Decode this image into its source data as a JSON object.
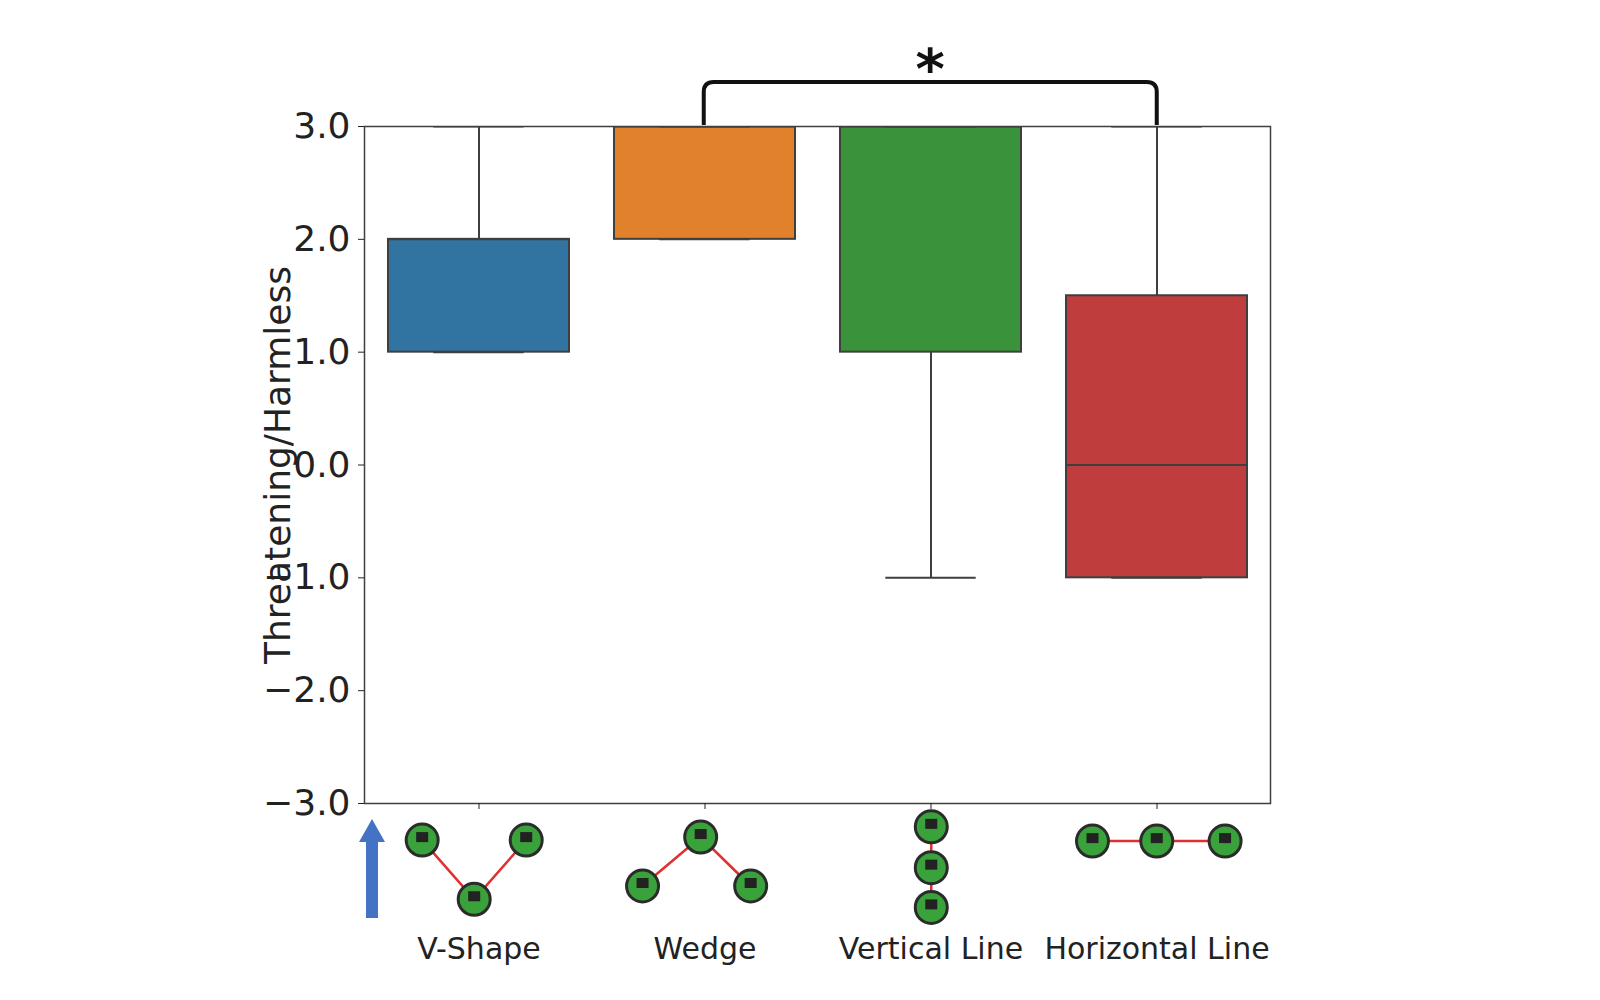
{
  "chart_data": {
    "type": "box",
    "categories": [
      "V-Shape",
      "Wedge",
      "Vertical Line",
      "Horizontal Line"
    ],
    "colors": [
      "#3274a1",
      "#e1812c",
      "#3a923a",
      "#c03d3e"
    ],
    "whisker_low": [
      1,
      2,
      -1,
      -1
    ],
    "q1": [
      1,
      2,
      1,
      -1
    ],
    "median": [
      2,
      3,
      3,
      0
    ],
    "q3": [
      2,
      3,
      3,
      1.5
    ],
    "whisker_high": [
      3,
      3,
      3,
      3
    ],
    "ylabel": "Threatening/Harmless",
    "ylim": [
      -3,
      3
    ],
    "yticks": [
      -3,
      -2,
      -1,
      0,
      1,
      2,
      3
    ],
    "annotations": [
      {
        "between": [
          "Wedge",
          "Horizontal Line"
        ],
        "text": "*"
      }
    ]
  }
}
